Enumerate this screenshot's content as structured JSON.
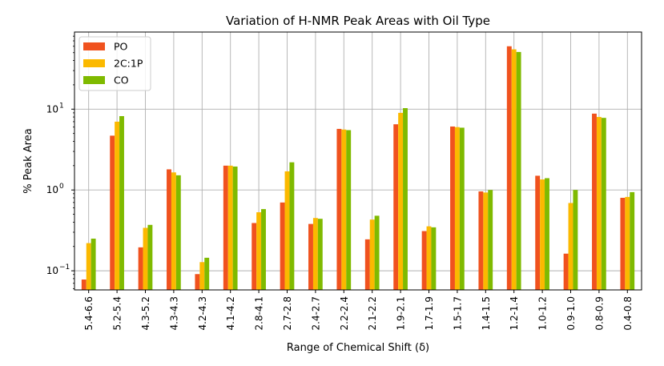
{
  "chart_data": {
    "type": "bar",
    "title": "Variation of H-NMR Peak Areas with Oil Type",
    "xlabel": "Range of Chemical Shift (δ)",
    "ylabel": "% Peak Area",
    "yscale": "log",
    "ylim": [
      0.058,
      90
    ],
    "grid": true,
    "legend_position": "top-left",
    "categories": [
      "5.4-6.6",
      "5.2-5.4",
      "4.3-5.2",
      "4.3-4.3",
      "4.2-4.3",
      "4.1-4.2",
      "2.8-4.1",
      "2.7-2.8",
      "2.4-2.7",
      "2.2-2.4",
      "2.1-2.2",
      "1.9-2.1",
      "1.7-1.9",
      "1.5-1.7",
      "1.4-1.5",
      "1.2-1.4",
      "1.0-1.2",
      "0.9-1.0",
      "0.8-0.9",
      "0.4-0.8"
    ],
    "series": [
      {
        "name": "PO",
        "color": "#f0521e",
        "values": [
          0.078,
          4.7,
          0.195,
          1.8,
          0.091,
          2.0,
          0.39,
          0.7,
          0.38,
          5.7,
          0.245,
          6.5,
          0.31,
          6.1,
          0.96,
          60,
          1.5,
          0.163,
          8.8,
          0.8
        ]
      },
      {
        "name": "2C:1P",
        "color": "#fbb900",
        "values": [
          0.22,
          7.0,
          0.34,
          1.65,
          0.128,
          2.0,
          0.53,
          1.7,
          0.45,
          5.6,
          0.43,
          9.0,
          0.355,
          6.0,
          0.93,
          55,
          1.35,
          0.69,
          8.0,
          0.82
        ]
      },
      {
        "name": "CO",
        "color": "#7fba00",
        "values": [
          0.25,
          8.2,
          0.37,
          1.52,
          0.145,
          1.95,
          0.58,
          2.2,
          0.44,
          5.5,
          0.48,
          10.3,
          0.345,
          5.9,
          1.0,
          51,
          1.4,
          1.0,
          7.8,
          0.94
        ]
      }
    ],
    "yticks": [
      {
        "value": 0.1,
        "base": "10",
        "exp": "−1"
      },
      {
        "value": 1,
        "base": "10",
        "exp": "0"
      },
      {
        "value": 10,
        "base": "10",
        "exp": "1"
      }
    ]
  }
}
